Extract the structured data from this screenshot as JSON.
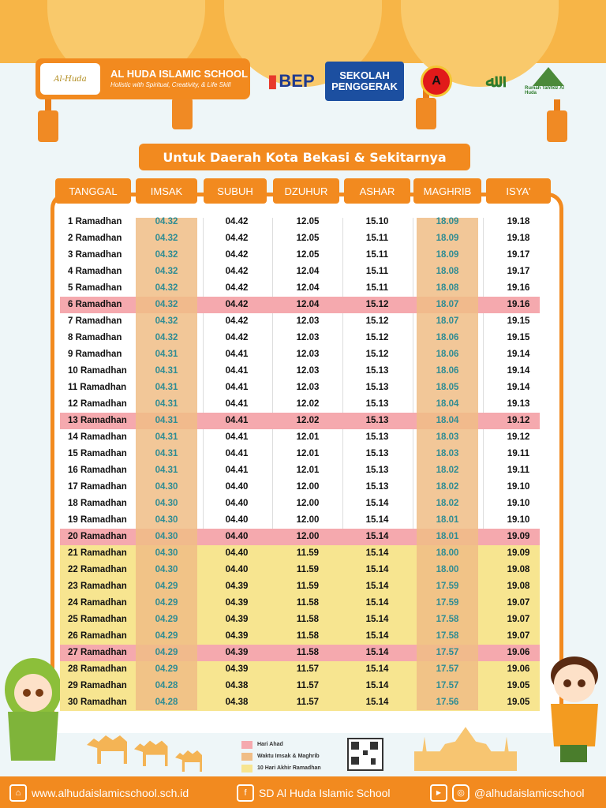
{
  "school": {
    "logo_text": "Al-Huda",
    "name": "AL HUDA ISLAMIC SCHOOL",
    "tagline": "Holistic with Spiritual, Creativity, & Life Skill"
  },
  "partners": {
    "bep": "BEP",
    "sekolah_penggerak": "SEKOLAH PENGGERAK",
    "akreditasi": "A",
    "rumah_tahfidz": "Rumah Tahfidz Al Huda"
  },
  "region_title": "Untuk Daerah Kota Bekasi & Sekitarnya",
  "headers": [
    "TANGGAL",
    "IMSAK",
    "SUBUH",
    "DZUHUR",
    "ASHAR",
    "MAGHRIB",
    "ISYA'"
  ],
  "rows": [
    {
      "date": "1 Ramadhan",
      "imsak": "04.32",
      "subuh": "04.42",
      "dzuhur": "12.05",
      "ashar": "15.10",
      "maghrib": "18.09",
      "isya": "19.18",
      "type": "normal"
    },
    {
      "date": "2 Ramadhan",
      "imsak": "04.32",
      "subuh": "04.42",
      "dzuhur": "12.05",
      "ashar": "15.11",
      "maghrib": "18.09",
      "isya": "19.18",
      "type": "normal"
    },
    {
      "date": "3 Ramadhan",
      "imsak": "04.32",
      "subuh": "04.42",
      "dzuhur": "12.05",
      "ashar": "15.11",
      "maghrib": "18.09",
      "isya": "19.17",
      "type": "normal"
    },
    {
      "date": "4 Ramadhan",
      "imsak": "04.32",
      "subuh": "04.42",
      "dzuhur": "12.04",
      "ashar": "15.11",
      "maghrib": "18.08",
      "isya": "19.17",
      "type": "normal"
    },
    {
      "date": "5 Ramadhan",
      "imsak": "04.32",
      "subuh": "04.42",
      "dzuhur": "12.04",
      "ashar": "15.11",
      "maghrib": "18.08",
      "isya": "19.16",
      "type": "normal"
    },
    {
      "date": "6 Ramadhan",
      "imsak": "04.32",
      "subuh": "04.42",
      "dzuhur": "12.04",
      "ashar": "15.12",
      "maghrib": "18.07",
      "isya": "19.16",
      "type": "ahad"
    },
    {
      "date": "7 Ramadhan",
      "imsak": "04.32",
      "subuh": "04.42",
      "dzuhur": "12.03",
      "ashar": "15.12",
      "maghrib": "18.07",
      "isya": "19.15",
      "type": "normal"
    },
    {
      "date": "8 Ramadhan",
      "imsak": "04.32",
      "subuh": "04.42",
      "dzuhur": "12.03",
      "ashar": "15.12",
      "maghrib": "18.06",
      "isya": "19.15",
      "type": "normal"
    },
    {
      "date": "9 Ramadhan",
      "imsak": "04.31",
      "subuh": "04.41",
      "dzuhur": "12.03",
      "ashar": "15.12",
      "maghrib": "18.06",
      "isya": "19.14",
      "type": "normal"
    },
    {
      "date": "10 Ramadhan",
      "imsak": "04.31",
      "subuh": "04.41",
      "dzuhur": "12.03",
      "ashar": "15.13",
      "maghrib": "18.06",
      "isya": "19.14",
      "type": "normal"
    },
    {
      "date": "11 Ramadhan",
      "imsak": "04.31",
      "subuh": "04.41",
      "dzuhur": "12.03",
      "ashar": "15.13",
      "maghrib": "18.05",
      "isya": "19.14",
      "type": "normal"
    },
    {
      "date": "12 Ramadhan",
      "imsak": "04.31",
      "subuh": "04.41",
      "dzuhur": "12.02",
      "ashar": "15.13",
      "maghrib": "18.04",
      "isya": "19.13",
      "type": "normal"
    },
    {
      "date": "13 Ramadhan",
      "imsak": "04.31",
      "subuh": "04.41",
      "dzuhur": "12.02",
      "ashar": "15.13",
      "maghrib": "18.04",
      "isya": "19.12",
      "type": "ahad"
    },
    {
      "date": "14 Ramadhan",
      "imsak": "04.31",
      "subuh": "04.41",
      "dzuhur": "12.01",
      "ashar": "15.13",
      "maghrib": "18.03",
      "isya": "19.12",
      "type": "normal"
    },
    {
      "date": "15 Ramadhan",
      "imsak": "04.31",
      "subuh": "04.41",
      "dzuhur": "12.01",
      "ashar": "15.13",
      "maghrib": "18.03",
      "isya": "19.11",
      "type": "normal"
    },
    {
      "date": "16 Ramadhan",
      "imsak": "04.31",
      "subuh": "04.41",
      "dzuhur": "12.01",
      "ashar": "15.13",
      "maghrib": "18.02",
      "isya": "19.11",
      "type": "normal"
    },
    {
      "date": "17 Ramadhan",
      "imsak": "04.30",
      "subuh": "04.40",
      "dzuhur": "12.00",
      "ashar": "15.13",
      "maghrib": "18.02",
      "isya": "19.10",
      "type": "normal"
    },
    {
      "date": "18 Ramadhan",
      "imsak": "04.30",
      "subuh": "04.40",
      "dzuhur": "12.00",
      "ashar": "15.14",
      "maghrib": "18.02",
      "isya": "19.10",
      "type": "normal"
    },
    {
      "date": "19 Ramadhan",
      "imsak": "04.30",
      "subuh": "04.40",
      "dzuhur": "12.00",
      "ashar": "15.14",
      "maghrib": "18.01",
      "isya": "19.10",
      "type": "normal"
    },
    {
      "date": "20 Ramadhan",
      "imsak": "04.30",
      "subuh": "04.40",
      "dzuhur": "12.00",
      "ashar": "15.14",
      "maghrib": "18.01",
      "isya": "19.09",
      "type": "ahad"
    },
    {
      "date": "21 Ramadhan",
      "imsak": "04.30",
      "subuh": "04.40",
      "dzuhur": "11.59",
      "ashar": "15.14",
      "maghrib": "18.00",
      "isya": "19.09",
      "type": "last10"
    },
    {
      "date": "22 Ramadhan",
      "imsak": "04.30",
      "subuh": "04.40",
      "dzuhur": "11.59",
      "ashar": "15.14",
      "maghrib": "18.00",
      "isya": "19.08",
      "type": "last10"
    },
    {
      "date": "23 Ramadhan",
      "imsak": "04.29",
      "subuh": "04.39",
      "dzuhur": "11.59",
      "ashar": "15.14",
      "maghrib": "17.59",
      "isya": "19.08",
      "type": "last10"
    },
    {
      "date": "24 Ramadhan",
      "imsak": "04.29",
      "subuh": "04.39",
      "dzuhur": "11.58",
      "ashar": "15.14",
      "maghrib": "17.59",
      "isya": "19.07",
      "type": "last10"
    },
    {
      "date": "25 Ramadhan",
      "imsak": "04.29",
      "subuh": "04.39",
      "dzuhur": "11.58",
      "ashar": "15.14",
      "maghrib": "17.58",
      "isya": "19.07",
      "type": "last10"
    },
    {
      "date": "26 Ramadhan",
      "imsak": "04.29",
      "subuh": "04.39",
      "dzuhur": "11.58",
      "ashar": "15.14",
      "maghrib": "17.58",
      "isya": "19.07",
      "type": "last10"
    },
    {
      "date": "27 Ramadhan",
      "imsak": "04.29",
      "subuh": "04.39",
      "dzuhur": "11.58",
      "ashar": "15.14",
      "maghrib": "17.57",
      "isya": "19.06",
      "type": "ahad"
    },
    {
      "date": "28 Ramadhan",
      "imsak": "04.29",
      "subuh": "04.39",
      "dzuhur": "11.57",
      "ashar": "15.14",
      "maghrib": "17.57",
      "isya": "19.06",
      "type": "last10"
    },
    {
      "date": "29 Ramadhan",
      "imsak": "04.28",
      "subuh": "04.38",
      "dzuhur": "11.57",
      "ashar": "15.14",
      "maghrib": "17.57",
      "isya": "19.05",
      "type": "last10"
    },
    {
      "date": "30 Ramadhan",
      "imsak": "04.28",
      "subuh": "04.38",
      "dzuhur": "11.57",
      "ashar": "15.14",
      "maghrib": "17.56",
      "isya": "19.05",
      "type": "last10"
    }
  ],
  "legend": [
    {
      "label": "Hari Ahad",
      "color": "#f5a9ae"
    },
    {
      "label": "Waktu Imsak & Maghrib",
      "color": "#f0bd86"
    },
    {
      "label": "10 Hari Akhir Ramadhan",
      "color": "#f7e590"
    }
  ],
  "footer": {
    "website": "www.alhudaislamicschool.sch.id",
    "facebook": "SD Al Huda Islamic School",
    "instagram": "@alhudaislamicschool"
  },
  "colors": {
    "accent": "#f28a1f",
    "highlight_col": "#f0bd86",
    "ahad": "#f5a9ae",
    "last10": "#f7e590",
    "teal_text": "#2f8c93"
  }
}
